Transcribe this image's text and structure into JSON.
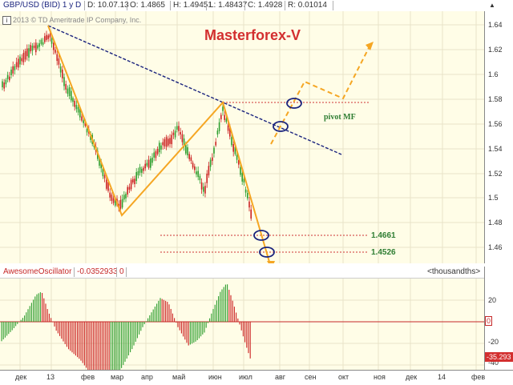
{
  "header": {
    "symbol": "GBP/USD (BID) 1 y D",
    "date": "D: 10.07.13",
    "open": "O: 1.4865",
    "high": "H: 1.49451",
    "low": "L: 1.48437",
    "close": "C: 1.4928",
    "range": "R: 0.01014"
  },
  "chart": {
    "copyright": "2013 © TD Ameritrade IP Company, Inc.",
    "watermark": "Masterforex-V",
    "pivot_label": "pivot MF",
    "level1": "1.4661",
    "level2": "1.4526",
    "y_ticks": [
      "1.64",
      "1.62",
      "1.6",
      "1.58",
      "1.56",
      "1.54",
      "1.52",
      "1.5",
      "1.48",
      "1.46"
    ],
    "colors": {
      "wave": "#f5a623",
      "trend": "#1a237e",
      "levels": "#cc3333",
      "up": "#2e9e2e",
      "down": "#cc2222",
      "bg": "#fffde7"
    }
  },
  "indicator": {
    "name": "AwesomeOscillator",
    "value": "-0.0352933",
    "param": "0",
    "units": "<thousandths>",
    "ticks": [
      "20",
      "0",
      "-20",
      "-40"
    ],
    "current": "-35.293"
  },
  "x_axis": {
    "labels": [
      "дек",
      "13",
      "фев",
      "мар",
      "апр",
      "май",
      "июн",
      "июл",
      "авг",
      "сен",
      "окт",
      "ноя",
      "дек",
      "14",
      "фев"
    ]
  }
}
